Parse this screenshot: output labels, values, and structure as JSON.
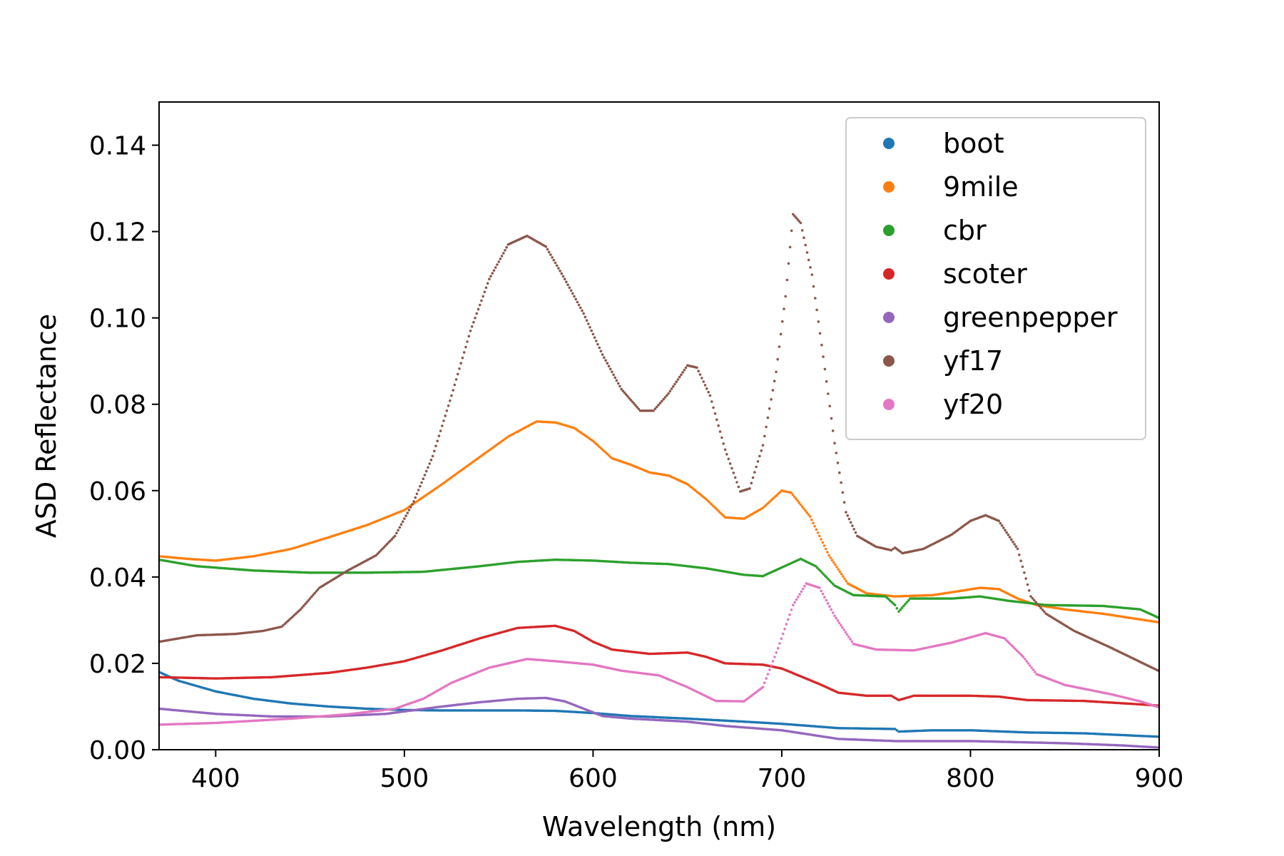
{
  "chart_data": {
    "type": "scatter",
    "xlabel": "Wavelength (nm)",
    "ylabel": "ASD Reflectance",
    "xlim": [
      370,
      900
    ],
    "ylim": [
      0,
      0.15
    ],
    "x_ticks": [
      "400",
      "500",
      "600",
      "700",
      "800",
      "900"
    ],
    "y_ticks": [
      "0.00",
      "0.02",
      "0.04",
      "0.06",
      "0.08",
      "0.10",
      "0.12",
      "0.14"
    ],
    "grid": false,
    "legend_position": "top-right",
    "series": [
      {
        "name": "boot",
        "color": "#1f77b4",
        "points": [
          [
            370,
            0.018
          ],
          [
            380,
            0.016
          ],
          [
            400,
            0.0135
          ],
          [
            420,
            0.0118
          ],
          [
            440,
            0.0107
          ],
          [
            460,
            0.01
          ],
          [
            480,
            0.0095
          ],
          [
            500,
            0.0092
          ],
          [
            520,
            0.0091
          ],
          [
            540,
            0.0091
          ],
          [
            560,
            0.0091
          ],
          [
            580,
            0.009
          ],
          [
            600,
            0.0085
          ],
          [
            620,
            0.0078
          ],
          [
            650,
            0.0072
          ],
          [
            680,
            0.0065
          ],
          [
            700,
            0.006
          ],
          [
            730,
            0.005
          ],
          [
            760,
            0.0048
          ],
          [
            762,
            0.0042
          ],
          [
            780,
            0.0045
          ],
          [
            800,
            0.0045
          ],
          [
            830,
            0.004
          ],
          [
            860,
            0.0038
          ],
          [
            900,
            0.003
          ]
        ]
      },
      {
        "name": "9mile",
        "color": "#ff7f0e",
        "points": [
          [
            370,
            0.0448
          ],
          [
            385,
            0.0442
          ],
          [
            400,
            0.0438
          ],
          [
            420,
            0.0448
          ],
          [
            440,
            0.0465
          ],
          [
            460,
            0.0492
          ],
          [
            480,
            0.052
          ],
          [
            500,
            0.0555
          ],
          [
            520,
            0.0615
          ],
          [
            540,
            0.0678
          ],
          [
            555,
            0.0725
          ],
          [
            570,
            0.076
          ],
          [
            580,
            0.0758
          ],
          [
            590,
            0.0745
          ],
          [
            600,
            0.0715
          ],
          [
            610,
            0.0675
          ],
          [
            620,
            0.066
          ],
          [
            630,
            0.0642
          ],
          [
            640,
            0.0635
          ],
          [
            650,
            0.0615
          ],
          [
            660,
            0.058
          ],
          [
            670,
            0.0538
          ],
          [
            680,
            0.0535
          ],
          [
            690,
            0.056
          ],
          [
            700,
            0.06
          ],
          [
            705,
            0.0595
          ],
          [
            715,
            0.054
          ],
          [
            725,
            0.045
          ],
          [
            735,
            0.0385
          ],
          [
            745,
            0.0362
          ],
          [
            760,
            0.0355
          ],
          [
            780,
            0.0358
          ],
          [
            795,
            0.0368
          ],
          [
            805,
            0.0375
          ],
          [
            815,
            0.0372
          ],
          [
            825,
            0.035
          ],
          [
            835,
            0.0335
          ],
          [
            850,
            0.0325
          ],
          [
            870,
            0.0315
          ],
          [
            900,
            0.0295
          ]
        ]
      },
      {
        "name": "cbr",
        "color": "#2ca02c",
        "points": [
          [
            370,
            0.044
          ],
          [
            390,
            0.0425
          ],
          [
            420,
            0.0415
          ],
          [
            450,
            0.041
          ],
          [
            480,
            0.041
          ],
          [
            510,
            0.0412
          ],
          [
            540,
            0.0425
          ],
          [
            560,
            0.0435
          ],
          [
            580,
            0.044
          ],
          [
            600,
            0.0438
          ],
          [
            620,
            0.0433
          ],
          [
            640,
            0.043
          ],
          [
            660,
            0.042
          ],
          [
            680,
            0.0405
          ],
          [
            690,
            0.0402
          ],
          [
            700,
            0.0422
          ],
          [
            710,
            0.0442
          ],
          [
            718,
            0.0425
          ],
          [
            728,
            0.038
          ],
          [
            738,
            0.0358
          ],
          [
            755,
            0.0355
          ],
          [
            760,
            0.0335
          ],
          [
            762,
            0.032
          ],
          [
            768,
            0.035
          ],
          [
            790,
            0.035
          ],
          [
            805,
            0.0355
          ],
          [
            820,
            0.0345
          ],
          [
            840,
            0.0335
          ],
          [
            870,
            0.0333
          ],
          [
            890,
            0.0325
          ],
          [
            900,
            0.0305
          ]
        ]
      },
      {
        "name": "scoter",
        "color": "#d62728",
        "points": [
          [
            370,
            0.0168
          ],
          [
            400,
            0.0165
          ],
          [
            430,
            0.0168
          ],
          [
            460,
            0.0178
          ],
          [
            480,
            0.019
          ],
          [
            500,
            0.0205
          ],
          [
            520,
            0.023
          ],
          [
            540,
            0.0258
          ],
          [
            560,
            0.0282
          ],
          [
            580,
            0.0287
          ],
          [
            590,
            0.0275
          ],
          [
            600,
            0.025
          ],
          [
            610,
            0.0232
          ],
          [
            630,
            0.0222
          ],
          [
            650,
            0.0225
          ],
          [
            660,
            0.0215
          ],
          [
            670,
            0.02
          ],
          [
            690,
            0.0197
          ],
          [
            700,
            0.0188
          ],
          [
            710,
            0.017
          ],
          [
            720,
            0.0152
          ],
          [
            730,
            0.0132
          ],
          [
            745,
            0.0125
          ],
          [
            758,
            0.0125
          ],
          [
            762,
            0.0115
          ],
          [
            770,
            0.0125
          ],
          [
            800,
            0.0125
          ],
          [
            815,
            0.0123
          ],
          [
            830,
            0.0115
          ],
          [
            860,
            0.0113
          ],
          [
            890,
            0.0105
          ],
          [
            900,
            0.0102
          ]
        ]
      },
      {
        "name": "greenpepper",
        "color": "#9467bd",
        "points": [
          [
            370,
            0.0095
          ],
          [
            400,
            0.0083
          ],
          [
            430,
            0.0077
          ],
          [
            460,
            0.0077
          ],
          [
            490,
            0.0083
          ],
          [
            520,
            0.01
          ],
          [
            540,
            0.011
          ],
          [
            560,
            0.0118
          ],
          [
            575,
            0.012
          ],
          [
            585,
            0.0112
          ],
          [
            595,
            0.0095
          ],
          [
            605,
            0.0078
          ],
          [
            620,
            0.0072
          ],
          [
            650,
            0.0065
          ],
          [
            670,
            0.0055
          ],
          [
            700,
            0.0045
          ],
          [
            730,
            0.0025
          ],
          [
            760,
            0.002
          ],
          [
            800,
            0.002
          ],
          [
            850,
            0.0015
          ],
          [
            880,
            0.001
          ],
          [
            900,
            0.0005
          ]
        ]
      },
      {
        "name": "yf17",
        "color": "#8c564b",
        "points": [
          [
            370,
            0.025
          ],
          [
            390,
            0.0265
          ],
          [
            410,
            0.0268
          ],
          [
            425,
            0.0275
          ],
          [
            435,
            0.0285
          ],
          [
            445,
            0.0325
          ],
          [
            455,
            0.0375
          ],
          [
            470,
            0.0415
          ],
          [
            485,
            0.045
          ],
          [
            495,
            0.0495
          ],
          [
            505,
            0.0575
          ],
          [
            515,
            0.068
          ],
          [
            525,
            0.082
          ],
          [
            535,
            0.097
          ],
          [
            545,
            0.109
          ],
          [
            555,
            0.117
          ],
          [
            565,
            0.119
          ],
          [
            575,
            0.1165
          ],
          [
            585,
            0.109
          ],
          [
            595,
            0.101
          ],
          [
            605,
            0.0915
          ],
          [
            615,
            0.0835
          ],
          [
            625,
            0.0785
          ],
          [
            632,
            0.0785
          ],
          [
            640,
            0.0825
          ],
          [
            650,
            0.089
          ],
          [
            655,
            0.0885
          ],
          [
            662,
            0.082
          ],
          [
            670,
            0.0695
          ],
          [
            678,
            0.0598
          ],
          [
            683,
            0.0605
          ],
          [
            690,
            0.0705
          ],
          [
            697,
            0.0875
          ],
          [
            702,
            0.105
          ],
          [
            706,
            0.124
          ],
          [
            710,
            0.122
          ],
          [
            716,
            0.11
          ],
          [
            722,
            0.091
          ],
          [
            728,
            0.071
          ],
          [
            734,
            0.055
          ],
          [
            740,
            0.0495
          ],
          [
            750,
            0.047
          ],
          [
            758,
            0.0462
          ],
          [
            760,
            0.0468
          ],
          [
            764,
            0.0455
          ],
          [
            775,
            0.0465
          ],
          [
            790,
            0.0498
          ],
          [
            800,
            0.053
          ],
          [
            808,
            0.0543
          ],
          [
            815,
            0.053
          ],
          [
            825,
            0.0465
          ],
          [
            832,
            0.0355
          ],
          [
            840,
            0.0315
          ],
          [
            855,
            0.0275
          ],
          [
            875,
            0.0235
          ],
          [
            900,
            0.0182
          ]
        ]
      },
      {
        "name": "yf20",
        "color": "#e377c2",
        "points": [
          [
            370,
            0.0058
          ],
          [
            400,
            0.0062
          ],
          [
            440,
            0.0072
          ],
          [
            470,
            0.0082
          ],
          [
            495,
            0.0095
          ],
          [
            510,
            0.0118
          ],
          [
            525,
            0.0155
          ],
          [
            545,
            0.019
          ],
          [
            565,
            0.021
          ],
          [
            580,
            0.0205
          ],
          [
            600,
            0.0197
          ],
          [
            615,
            0.0183
          ],
          [
            635,
            0.0172
          ],
          [
            650,
            0.0145
          ],
          [
            665,
            0.0113
          ],
          [
            680,
            0.0112
          ],
          [
            690,
            0.0145
          ],
          [
            698,
            0.0235
          ],
          [
            706,
            0.0335
          ],
          [
            713,
            0.0385
          ],
          [
            720,
            0.0375
          ],
          [
            728,
            0.031
          ],
          [
            738,
            0.0245
          ],
          [
            750,
            0.0232
          ],
          [
            770,
            0.023
          ],
          [
            790,
            0.0248
          ],
          [
            808,
            0.027
          ],
          [
            818,
            0.0258
          ],
          [
            828,
            0.0215
          ],
          [
            835,
            0.0175
          ],
          [
            850,
            0.015
          ],
          [
            875,
            0.0128
          ],
          [
            890,
            0.0112
          ],
          [
            900,
            0.0098
          ]
        ]
      }
    ]
  }
}
